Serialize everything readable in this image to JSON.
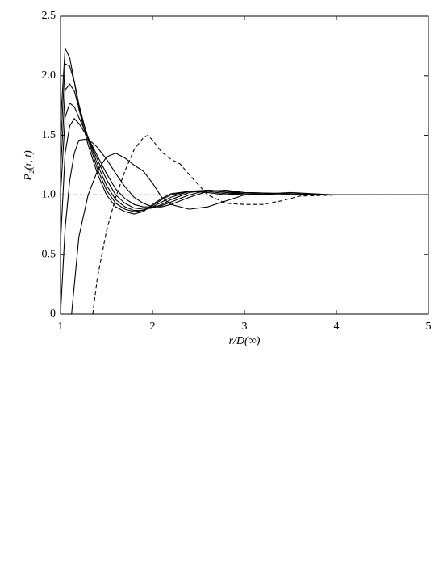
{
  "chart_data": {
    "type": "line",
    "xlabel": "r/D(∞)",
    "ylabel": "P₂(r, t)",
    "xlim": [
      1,
      5
    ],
    "ylim": [
      0,
      2.5
    ],
    "xticks": [
      1,
      2,
      3,
      4,
      5
    ],
    "yticks": [
      0,
      0.5,
      {
        "value": 1,
        "label": "1.0"
      },
      1.5,
      {
        "value": 2,
        "label": "2.0"
      },
      2.5
    ],
    "series": [
      {
        "color": "#000000",
        "style": "solid",
        "x": [
          1.0,
          1.05,
          1.1,
          1.15,
          1.2,
          1.3,
          1.4,
          1.5,
          1.6,
          1.7,
          1.8,
          1.9,
          2.0,
          2.1,
          2.2,
          2.4,
          2.6,
          2.8,
          3.0,
          3.5,
          4.0,
          5.0
        ],
        "values": [
          1.6,
          2.23,
          2.15,
          1.95,
          1.72,
          1.42,
          1.18,
          1.0,
          0.9,
          0.86,
          0.84,
          0.86,
          0.92,
          0.97,
          1.01,
          1.03,
          1.02,
          1.0,
          1.01,
          1.0,
          1.0,
          1.0
        ]
      },
      {
        "color": "#000000",
        "style": "solid",
        "x": [
          1.0,
          1.05,
          1.1,
          1.15,
          1.2,
          1.3,
          1.4,
          1.5,
          1.6,
          1.7,
          1.8,
          1.9,
          2.0,
          2.1,
          2.2,
          2.4,
          2.6,
          2.8,
          3.0,
          3.5,
          4.0,
          5.0
        ],
        "values": [
          1.4,
          2.1,
          2.08,
          1.95,
          1.76,
          1.46,
          1.22,
          1.04,
          0.93,
          0.88,
          0.86,
          0.87,
          0.91,
          0.96,
          1.0,
          1.03,
          1.03,
          1.01,
          1.01,
          1.0,
          1.0,
          1.0
        ]
      },
      {
        "color": "#000000",
        "style": "solid",
        "x": [
          1.0,
          1.05,
          1.1,
          1.15,
          1.2,
          1.3,
          1.4,
          1.5,
          1.6,
          1.7,
          1.8,
          1.9,
          2.0,
          2.1,
          2.2,
          2.4,
          2.6,
          2.8,
          3.0,
          3.5,
          4.0,
          5.0
        ],
        "values": [
          1.2,
          1.88,
          1.93,
          1.87,
          1.73,
          1.48,
          1.26,
          1.08,
          0.96,
          0.9,
          0.87,
          0.87,
          0.9,
          0.94,
          0.98,
          1.03,
          1.04,
          1.02,
          1.01,
          1.0,
          1.0,
          1.0
        ]
      },
      {
        "color": "#000000",
        "style": "solid",
        "x": [
          1.0,
          1.05,
          1.1,
          1.15,
          1.2,
          1.3,
          1.4,
          1.5,
          1.6,
          1.7,
          1.8,
          1.9,
          2.0,
          2.1,
          2.2,
          2.4,
          2.6,
          2.8,
          3.0,
          3.5,
          4.0,
          5.0
        ],
        "values": [
          1.0,
          1.65,
          1.77,
          1.74,
          1.65,
          1.48,
          1.3,
          1.13,
          1.0,
          0.93,
          0.89,
          0.88,
          0.89,
          0.92,
          0.96,
          1.02,
          1.04,
          1.03,
          1.01,
          1.0,
          1.0,
          1.0
        ]
      },
      {
        "color": "#000000",
        "style": "solid",
        "x": [
          1.0,
          1.05,
          1.1,
          1.15,
          1.2,
          1.3,
          1.4,
          1.5,
          1.6,
          1.7,
          1.8,
          1.9,
          2.0,
          2.1,
          2.2,
          2.4,
          2.6,
          2.8,
          3.0,
          3.5,
          4.0,
          5.0
        ],
        "values": [
          0.6,
          1.35,
          1.58,
          1.64,
          1.6,
          1.48,
          1.33,
          1.18,
          1.05,
          0.97,
          0.92,
          0.9,
          0.9,
          0.91,
          0.94,
          1.0,
          1.04,
          1.03,
          1.02,
          1.01,
          1.0,
          1.0
        ]
      },
      {
        "color": "#000000",
        "style": "solid",
        "x": [
          1.0,
          1.05,
          1.1,
          1.15,
          1.2,
          1.3,
          1.4,
          1.5,
          1.6,
          1.7,
          1.8,
          1.9,
          2.0,
          2.1,
          2.2,
          2.4,
          2.6,
          2.8,
          3.0,
          3.5,
          4.0,
          5.0
        ],
        "values": [
          0,
          0.72,
          1.12,
          1.35,
          1.46,
          1.47,
          1.4,
          1.3,
          1.18,
          1.07,
          0.98,
          0.93,
          0.9,
          0.9,
          0.92,
          0.98,
          1.03,
          1.04,
          1.02,
          1.01,
          1.0,
          1.0
        ]
      },
      {
        "color": "#000000",
        "style": "solid",
        "x": [
          1.12,
          1.2,
          1.3,
          1.4,
          1.5,
          1.6,
          1.7,
          1.8,
          1.9,
          2.0,
          2.1,
          2.2,
          2.4,
          2.6,
          2.8,
          3.0,
          3.5,
          4.0,
          5.0
        ],
        "values": [
          0,
          0.65,
          1.0,
          1.2,
          1.32,
          1.35,
          1.31,
          1.25,
          1.2,
          1.1,
          0.98,
          0.92,
          0.88,
          0.9,
          0.95,
          1.0,
          1.02,
          1.0,
          1.0
        ]
      },
      {
        "color": "#000000",
        "style": "dashed",
        "x": [
          1.35,
          1.4,
          1.5,
          1.6,
          1.7,
          1.8,
          1.9,
          1.95,
          2.0,
          2.1,
          2.2,
          2.3,
          2.4,
          2.6,
          2.8,
          3.0,
          3.2,
          3.4,
          3.6,
          4.0,
          5.0
        ],
        "values": [
          0,
          0.3,
          0.7,
          0.98,
          1.2,
          1.38,
          1.48,
          1.5,
          1.46,
          1.36,
          1.3,
          1.26,
          1.17,
          1.0,
          0.93,
          0.92,
          0.92,
          0.95,
          0.99,
          1.0,
          1.0
        ]
      },
      {
        "color": "#000000",
        "style": "dashed",
        "x": [
          1,
          5
        ],
        "values": [
          1,
          1
        ]
      }
    ]
  }
}
